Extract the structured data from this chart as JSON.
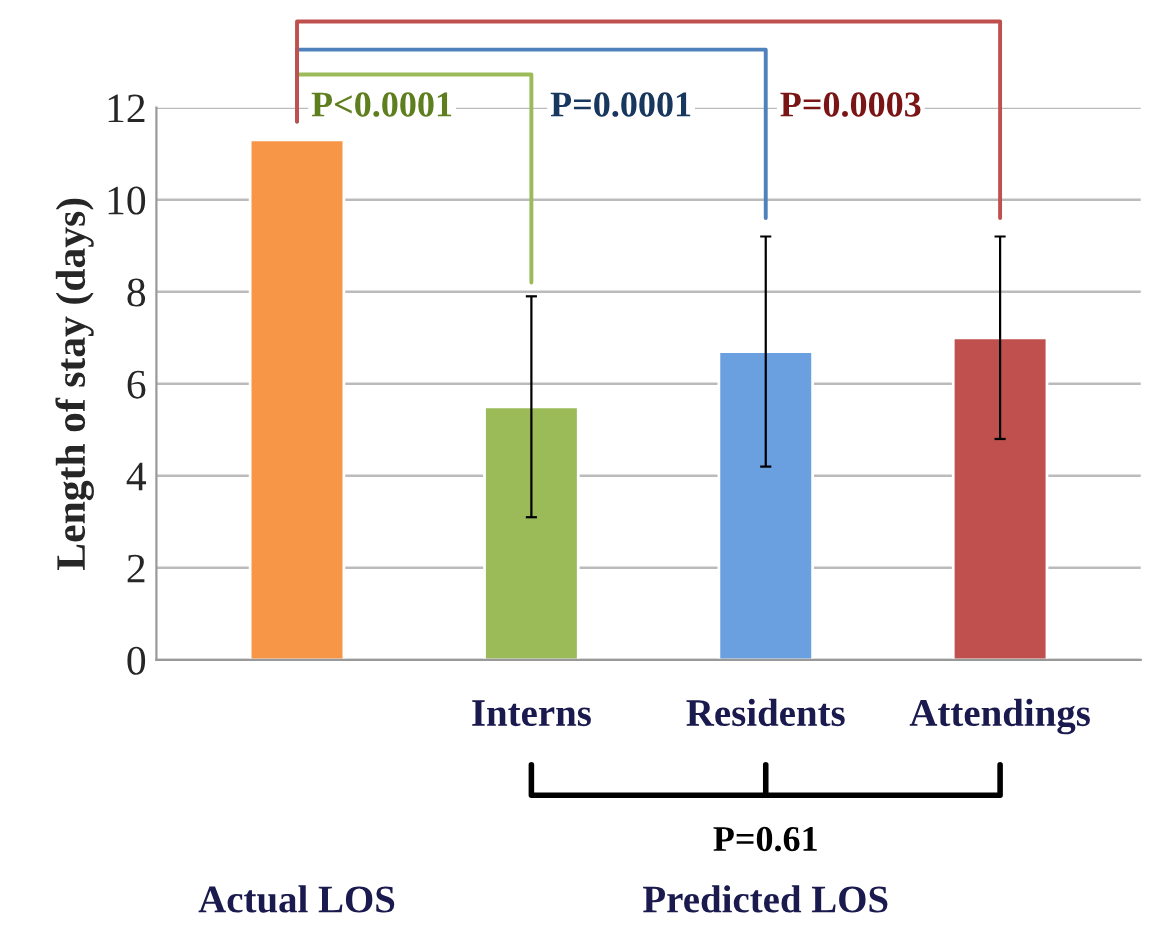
{
  "chart_data": {
    "type": "bar",
    "ylabel": "Length of stay (days)",
    "categories": [
      null,
      "Interns",
      "Residents",
      "Attendings"
    ],
    "values": [
      11.3,
      5.5,
      6.7,
      7.0
    ],
    "colors": [
      "#f79646",
      "#9bbb59",
      "#6a9fe0",
      "#c0504d"
    ],
    "errors": [
      null,
      2.4,
      2.5,
      2.2
    ],
    "ylim": [
      0,
      12
    ],
    "yticks": [
      0,
      2,
      4,
      6,
      8,
      10,
      12
    ],
    "grid": "y",
    "annotations": [
      "P<0.0001",
      "P=0.0001",
      "P=0.0003",
      "P=0.61",
      "Actual LOS",
      "Predicted LOS"
    ]
  }
}
